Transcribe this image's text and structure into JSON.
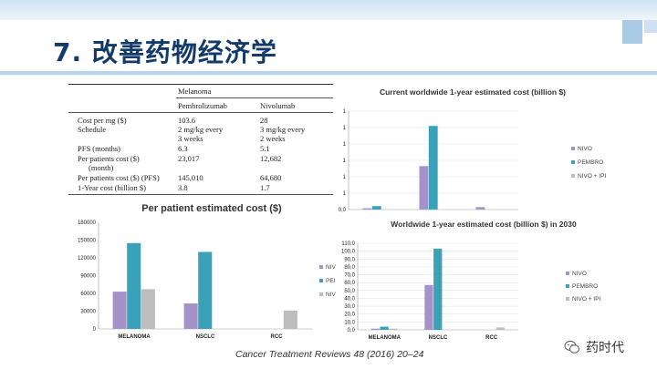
{
  "slide": {
    "title": "7. 改善药物经济学",
    "citation": "Cancer Treatment Reviews 48 (2016) 20–24",
    "brand": "药时代"
  },
  "cost_table": {
    "group_header": "Melanoma",
    "columns": [
      "Pembrolizumab",
      "Nivolumab"
    ],
    "rows": [
      {
        "label": [
          "Cost per mg ($)"
        ],
        "pembro": [
          "103.6"
        ],
        "nivo": [
          "28"
        ]
      },
      {
        "label": [
          "Schedule"
        ],
        "pembro": [
          "2 mg/kg every",
          "3 weeks"
        ],
        "nivo": [
          "3 mg/kg every",
          "2 weeks"
        ]
      },
      {
        "label": [
          "PFS (months)"
        ],
        "pembro": [
          "6.3"
        ],
        "nivo": [
          "5.1"
        ]
      },
      {
        "label": [
          "Per patients cost ($)",
          "(month)"
        ],
        "pembro": [
          "23,017"
        ],
        "nivo": [
          "12,682"
        ]
      },
      {
        "label": [
          "Per patients cost ($) (PFS)"
        ],
        "pembro": [
          "145,010"
        ],
        "nivo": [
          "64,680"
        ]
      },
      {
        "label": [
          "1-Year cost (billion $)"
        ],
        "pembro": [
          "3.8"
        ],
        "nivo": [
          "1.7"
        ]
      }
    ]
  },
  "colors": {
    "nivo": "#a493c9",
    "pembro": "#3aa2b8",
    "nivo_ipi": "#bdbdbd",
    "title_text": "#123a6b",
    "accent": "#a9cbe5"
  },
  "chart_data": [
    {
      "id": "per-patient",
      "type": "bar",
      "title": "Per patient estimated cost ($)",
      "categories": [
        "MELANOMA",
        "NSCLC",
        "RCC"
      ],
      "series": [
        {
          "name": "NIV",
          "values": [
            63000,
            43000,
            0
          ]
        },
        {
          "name": "PEI",
          "values": [
            145000,
            130000,
            0
          ]
        },
        {
          "name": "NIV",
          "values": [
            67000,
            0,
            31000
          ]
        }
      ],
      "ylim": [
        0,
        180000
      ],
      "yticks": [
        "0",
        "30000",
        "60000",
        "90000",
        "120000",
        "150000",
        "180000"
      ],
      "legend": "right",
      "grid": false
    },
    {
      "id": "current",
      "type": "bar",
      "title": "Current worldwide 1-year estimated cost (billion $)",
      "categories": [
        "",
        "",
        ""
      ],
      "series": [
        {
          "name": "NIVO",
          "values": [
            0.8,
            26.5,
            1.5
          ]
        },
        {
          "name": "PEMBRO",
          "values": [
            2.1,
            51.0,
            0
          ]
        },
        {
          "name": "NIVO + IPI",
          "values": [
            0,
            0,
            0
          ]
        }
      ],
      "ylim": [
        0,
        60
      ],
      "yticks": [
        "0,0",
        "1",
        "1",
        "1",
        "1",
        "1",
        "1"
      ],
      "legend": "right",
      "grid": true
    },
    {
      "id": "y2030",
      "type": "bar",
      "title": "Worldwide 1-year estimated cost (billion $) in 2030",
      "categories": [
        "MELANOMA",
        "NSCLC",
        "RCC"
      ],
      "series": [
        {
          "name": "NIVO",
          "values": [
            1.5,
            57.0,
            0
          ]
        },
        {
          "name": "PEMBRO",
          "values": [
            4.0,
            103.0,
            0
          ]
        },
        {
          "name": "NIVO + IPI",
          "values": [
            1.5,
            0,
            3.0
          ]
        }
      ],
      "ylim": [
        0,
        110
      ],
      "yticks": [
        "0,0",
        "10,0",
        "20,0",
        "30,0",
        "40,0",
        "50,0",
        "60,0",
        "70,0",
        "80,0",
        "90,0",
        "100,0",
        "110,0"
      ],
      "legend": "right",
      "grid": true
    }
  ]
}
